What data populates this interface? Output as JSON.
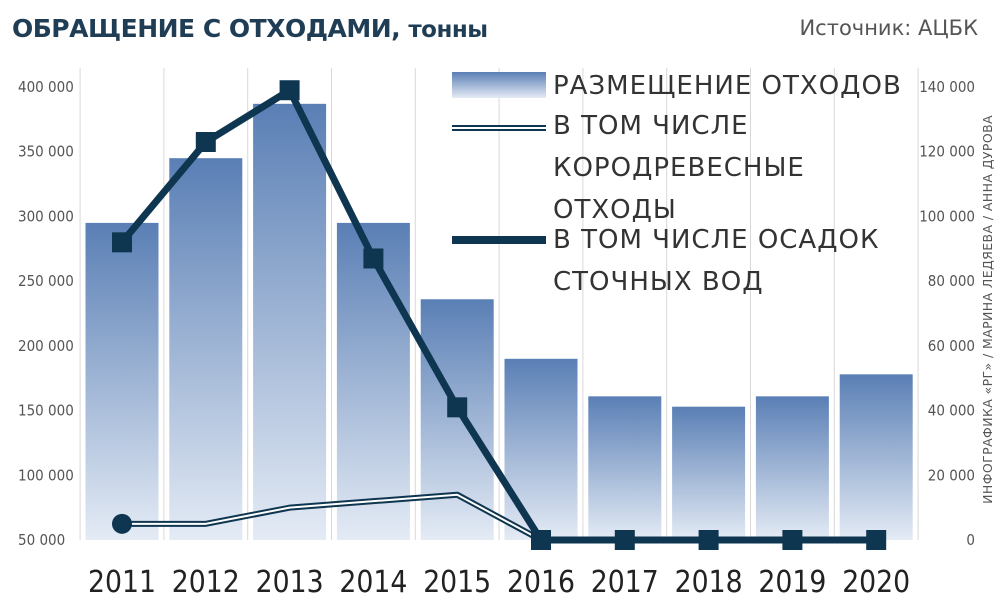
{
  "header": {
    "title": "ОБРАЩЕНИЕ С ОТХОДАМИ,",
    "title_unit": "тонны",
    "source": "Источник: АЦБК",
    "credit": "ИНФОГРАФИКА «РГ» / МАРИНА ЛЕДЯЕВА / АННА ДУРОВА"
  },
  "chart_data": {
    "type": "bar",
    "categories": [
      "2011",
      "2012",
      "2013",
      "2014",
      "2015",
      "2016",
      "2017",
      "2018",
      "2019",
      "2020"
    ],
    "series": [
      {
        "name": "РАЗМЕЩЕНИЕ ОТХОДОВ",
        "type": "bar",
        "axis": "left",
        "values": [
          295000,
          345000,
          387000,
          295000,
          236000,
          190000,
          161000,
          153000,
          161000,
          178000
        ]
      },
      {
        "name": "В ТОМ ЧИСЛЕ КОРОДРЕВЕСНЫЕ ОТХОДЫ",
        "type": "line",
        "axis": "right",
        "values": [
          5000,
          5000,
          10000,
          12000,
          14000,
          0,
          0,
          0,
          0,
          0
        ]
      },
      {
        "name": "В ТОМ ЧИСЛЕ ОСАДОК СТОЧНЫХ ВОД",
        "type": "line",
        "axis": "right",
        "values": [
          92000,
          123000,
          139000,
          87000,
          41000,
          0,
          0,
          0,
          0,
          0
        ]
      }
    ],
    "legend": {
      "bar": [
        "РАЗМЕЩЕНИЕ ОТХОДОВ"
      ],
      "thin_line": [
        "В ТОМ ЧИСЛЕ",
        "КОРОДРЕВЕСНЫЕ",
        "ОТХОДЫ"
      ],
      "thick_line": [
        "В ТОМ ЧИСЛЕ ОСАДОК",
        "СТОЧНЫХ ВОД"
      ],
      "placement": "top-right"
    },
    "ylim_left": [
      50000,
      400000
    ],
    "yticks_left": [
      "400 000",
      "350 000",
      "300 000",
      "250 000",
      "200 000",
      "150 000",
      "100 000",
      "50 000"
    ],
    "ylim_right": [
      0,
      140000
    ],
    "yticks_right": [
      "140 000",
      "120 000",
      "100 000",
      "80 000",
      "60 000",
      "40 000",
      "20 000",
      "0"
    ],
    "grid": "vertical",
    "colors": {
      "bar_top": "#5a7fb5",
      "bar_bottom": "#e4ebf5",
      "line": "#0f3650"
    }
  }
}
